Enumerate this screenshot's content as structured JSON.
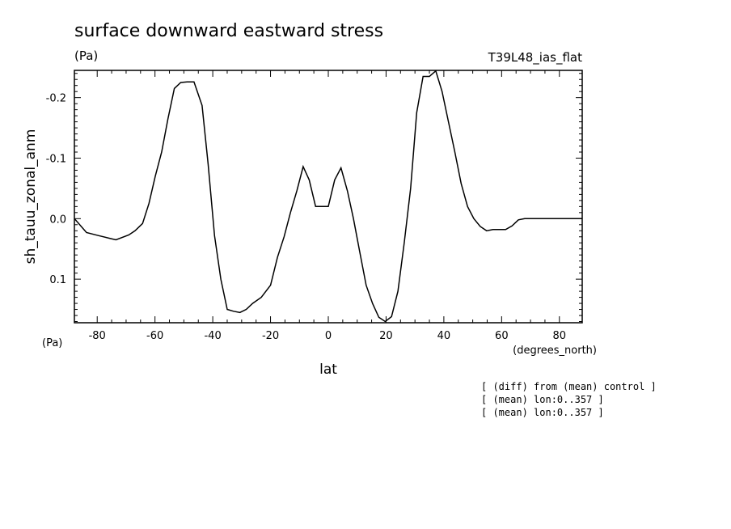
{
  "chart_data": {
    "type": "line",
    "title": "surface downward eastward stress",
    "units_label": "(Pa)",
    "experiment_label": "T39L48_ias_flat",
    "ylabel": "sh_tauu_zonal_anm",
    "ylabel_units": "(Pa)",
    "xlabel": "lat",
    "xlabel_units": "(degrees_north)",
    "xlim": [
      -87.9,
      87.9
    ],
    "ylim": [
      0.172,
      -0.245
    ],
    "y_inverted": true,
    "xticks": [
      -80,
      -60,
      -40,
      -20,
      0,
      20,
      40,
      60,
      80
    ],
    "xtick_labels": [
      "-80",
      "-60",
      "-40",
      "-20",
      "0",
      "20",
      "40",
      "60",
      "80"
    ],
    "yticks": [
      -0.2,
      -0.1,
      0.0,
      0.1
    ],
    "ytick_labels": [
      "-0.2",
      "-0.1",
      "0.0",
      "0.1"
    ],
    "grid": false,
    "series": [
      {
        "x": [
          -87.9,
          -83.7,
          -79.5,
          -75.3,
          -73.5,
          -69.1,
          -66.9,
          -64.3,
          -62.1,
          -59.9,
          -57.7,
          -55.5,
          -53.3,
          -51.1,
          -48.9,
          -46.5,
          -43.7,
          -41.6,
          -39.4,
          -37.2,
          -35.0,
          -32.8,
          -30.6,
          -28.4,
          -26.2,
          -23.2,
          -20.0,
          -17.6,
          -15.3,
          -13.1,
          -10.9,
          -8.7,
          -6.6,
          -4.4,
          -2.2,
          0.0,
          2.2,
          4.4,
          6.6,
          8.7,
          10.9,
          13.1,
          15.3,
          17.5,
          19.7,
          21.9,
          24.1,
          26.3,
          28.5,
          30.6,
          32.8,
          35.0,
          37.2,
          39.4,
          41.6,
          43.8,
          46.0,
          48.2,
          50.4,
          52.6,
          54.8,
          57.0,
          59.2,
          61.4,
          63.6,
          65.8,
          68.0,
          70.2,
          72.4,
          74.6,
          76.8,
          79.0,
          81.2,
          83.4,
          85.6,
          87.9
        ],
        "values": [
          0.0,
          0.023,
          0.028,
          0.033,
          0.035,
          0.027,
          0.02,
          0.008,
          -0.025,
          -0.07,
          -0.11,
          -0.165,
          -0.215,
          -0.225,
          -0.226,
          -0.226,
          -0.187,
          -0.09,
          0.028,
          0.1,
          0.15,
          0.153,
          0.155,
          0.15,
          0.14,
          0.13,
          0.11,
          0.064,
          0.03,
          -0.01,
          -0.046,
          -0.086,
          -0.064,
          -0.02,
          -0.02,
          -0.02,
          -0.064,
          -0.084,
          -0.046,
          0.0,
          0.055,
          0.11,
          0.14,
          0.163,
          0.17,
          0.162,
          0.12,
          0.04,
          -0.05,
          -0.175,
          -0.235,
          -0.235,
          -0.244,
          -0.21,
          -0.16,
          -0.11,
          -0.058,
          -0.02,
          0.0,
          0.013,
          0.02,
          0.018,
          0.018,
          0.018,
          0.012,
          0.002,
          0.0,
          0.0,
          0.0,
          0.0,
          0.0,
          0.0,
          0.0,
          0.0,
          0.0,
          0.0
        ],
        "color": "#000000"
      }
    ]
  },
  "notes": [
    "[ (diff) from (mean) control ]",
    "[ (mean) lon:0..357 ]",
    "[ (mean) lon:0..357 ]"
  ]
}
